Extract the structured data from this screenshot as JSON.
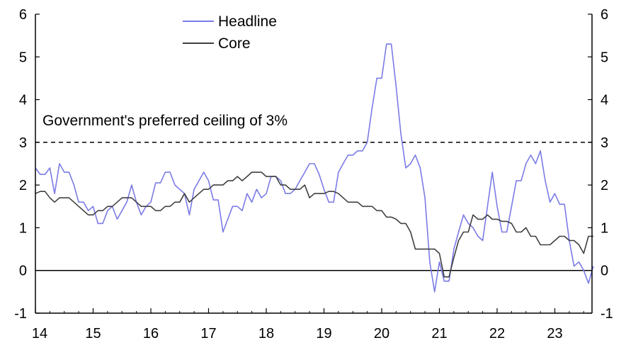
{
  "chart_data": {
    "type": "line",
    "x_labels": [
      "14",
      "15",
      "16",
      "17",
      "18",
      "19",
      "20",
      "21",
      "22",
      "23"
    ],
    "x_range": [
      2014.0,
      2023.833
    ],
    "ylim": [
      -1,
      6
    ],
    "yticks": [
      -1,
      0,
      1,
      2,
      3,
      4,
      5,
      6
    ],
    "grid": false,
    "legend_position": "top-center",
    "annotation": "Government's preferred ceiling of 3%",
    "reference_line": 3,
    "zero_line": 0,
    "series": [
      {
        "name": "Headline",
        "color": "#7b7be6",
        "x": [
          2014.0,
          2014.083,
          2014.167,
          2014.25,
          2014.333,
          2014.417,
          2014.5,
          2014.583,
          2014.667,
          2014.75,
          2014.833,
          2014.917,
          2015.0,
          2015.083,
          2015.167,
          2015.25,
          2015.333,
          2015.417,
          2015.5,
          2015.583,
          2015.667,
          2015.75,
          2015.833,
          2015.917,
          2016.0,
          2016.083,
          2016.167,
          2016.25,
          2016.333,
          2016.417,
          2016.5,
          2016.583,
          2016.667,
          2016.75,
          2016.833,
          2016.917,
          2017.0,
          2017.083,
          2017.167,
          2017.25,
          2017.333,
          2017.417,
          2017.5,
          2017.583,
          2017.667,
          2017.75,
          2017.833,
          2017.917,
          2018.0,
          2018.083,
          2018.167,
          2018.25,
          2018.333,
          2018.417,
          2018.5,
          2018.583,
          2018.667,
          2018.75,
          2018.833,
          2018.917,
          2019.0,
          2019.083,
          2019.167,
          2019.25,
          2019.333,
          2019.417,
          2019.5,
          2019.583,
          2019.667,
          2019.75,
          2019.833,
          2019.917,
          2020.0,
          2020.083,
          2020.167,
          2020.25,
          2020.333,
          2020.417,
          2020.5,
          2020.583,
          2020.667,
          2020.75,
          2020.833,
          2020.917,
          2021.0,
          2021.083,
          2021.167,
          2021.25,
          2021.333,
          2021.417,
          2021.5,
          2021.583,
          2021.667,
          2021.75,
          2021.833,
          2021.917,
          2022.0,
          2022.083,
          2022.167,
          2022.25,
          2022.333,
          2022.417,
          2022.5,
          2022.583,
          2022.667,
          2022.75,
          2022.833,
          2022.917,
          2023.0,
          2023.083,
          2023.167,
          2023.25,
          2023.333,
          2023.417,
          2023.5,
          2023.583,
          2023.667
        ],
        "values": [
          2.4,
          2.25,
          2.25,
          2.4,
          1.8,
          2.5,
          2.3,
          2.3,
          2.0,
          1.6,
          1.6,
          1.4,
          1.5,
          1.1,
          1.1,
          1.4,
          1.5,
          1.2,
          1.4,
          1.6,
          2.0,
          1.6,
          1.3,
          1.5,
          1.6,
          2.05,
          2.05,
          2.3,
          2.3,
          2.0,
          1.9,
          1.8,
          1.3,
          1.9,
          2.1,
          2.3,
          2.1,
          1.65,
          1.65,
          0.9,
          1.2,
          1.5,
          1.5,
          1.4,
          1.8,
          1.6,
          1.9,
          1.7,
          1.8,
          2.2,
          2.2,
          2.1,
          1.8,
          1.8,
          1.9,
          2.1,
          2.3,
          2.5,
          2.5,
          2.25,
          1.9,
          1.6,
          1.6,
          2.3,
          2.5,
          2.7,
          2.7,
          2.8,
          2.8,
          3.0,
          3.8,
          4.5,
          4.5,
          5.3,
          5.3,
          4.3,
          3.2,
          2.4,
          2.5,
          2.7,
          2.4,
          1.7,
          0.2,
          -0.5,
          0.2,
          -0.25,
          -0.25,
          0.5,
          0.9,
          1.3,
          1.1,
          1.0,
          0.8,
          0.7,
          1.5,
          2.3,
          1.5,
          0.9,
          0.9,
          1.5,
          2.1,
          2.1,
          2.5,
          2.7,
          2.5,
          2.8,
          2.1,
          1.6,
          1.8,
          1.55,
          1.55,
          0.7,
          0.1,
          0.2,
          0.0,
          -0.3,
          0.1
        ]
      },
      {
        "name": "Core",
        "color": "#404040",
        "x": [
          2014.0,
          2014.083,
          2014.167,
          2014.25,
          2014.333,
          2014.417,
          2014.5,
          2014.583,
          2014.667,
          2014.75,
          2014.833,
          2014.917,
          2015.0,
          2015.083,
          2015.167,
          2015.25,
          2015.333,
          2015.417,
          2015.5,
          2015.583,
          2015.667,
          2015.75,
          2015.833,
          2015.917,
          2016.0,
          2016.083,
          2016.167,
          2016.25,
          2016.333,
          2016.417,
          2016.5,
          2016.583,
          2016.667,
          2016.75,
          2016.833,
          2016.917,
          2017.0,
          2017.083,
          2017.167,
          2017.25,
          2017.333,
          2017.417,
          2017.5,
          2017.583,
          2017.667,
          2017.75,
          2017.833,
          2017.917,
          2018.0,
          2018.083,
          2018.167,
          2018.25,
          2018.333,
          2018.417,
          2018.5,
          2018.583,
          2018.667,
          2018.75,
          2018.833,
          2018.917,
          2019.0,
          2019.083,
          2019.167,
          2019.25,
          2019.333,
          2019.417,
          2019.5,
          2019.583,
          2019.667,
          2019.75,
          2019.833,
          2019.917,
          2020.0,
          2020.083,
          2020.167,
          2020.25,
          2020.333,
          2020.417,
          2020.5,
          2020.583,
          2020.667,
          2020.75,
          2020.833,
          2020.917,
          2021.0,
          2021.083,
          2021.167,
          2021.25,
          2021.333,
          2021.417,
          2021.5,
          2021.583,
          2021.667,
          2021.75,
          2021.833,
          2021.917,
          2022.0,
          2022.083,
          2022.167,
          2022.25,
          2022.333,
          2022.417,
          2022.5,
          2022.583,
          2022.667,
          2022.75,
          2022.833,
          2022.917,
          2023.0,
          2023.083,
          2023.167,
          2023.25,
          2023.333,
          2023.417,
          2023.5,
          2023.583,
          2023.667
        ],
        "values": [
          1.8,
          1.85,
          1.85,
          1.7,
          1.6,
          1.7,
          1.7,
          1.7,
          1.6,
          1.5,
          1.4,
          1.3,
          1.3,
          1.4,
          1.4,
          1.5,
          1.5,
          1.6,
          1.7,
          1.7,
          1.7,
          1.6,
          1.5,
          1.5,
          1.5,
          1.4,
          1.4,
          1.5,
          1.5,
          1.6,
          1.6,
          1.8,
          1.6,
          1.7,
          1.8,
          1.9,
          1.9,
          2.0,
          2.0,
          2.0,
          2.1,
          2.1,
          2.2,
          2.1,
          2.2,
          2.3,
          2.3,
          2.3,
          2.2,
          2.2,
          2.2,
          2.0,
          2.0,
          1.9,
          1.9,
          1.9,
          2.0,
          1.7,
          1.8,
          1.8,
          1.8,
          1.85,
          1.85,
          1.8,
          1.7,
          1.6,
          1.6,
          1.6,
          1.5,
          1.5,
          1.5,
          1.4,
          1.4,
          1.25,
          1.25,
          1.2,
          1.1,
          1.1,
          0.9,
          0.5,
          0.5,
          0.5,
          0.5,
          0.5,
          0.4,
          -0.15,
          -0.15,
          0.3,
          0.7,
          0.9,
          0.9,
          1.3,
          1.2,
          1.2,
          1.3,
          1.2,
          1.2,
          1.15,
          1.15,
          1.1,
          0.9,
          0.9,
          1.0,
          0.8,
          0.8,
          0.6,
          0.6,
          0.6,
          0.7,
          0.8,
          0.8,
          0.7,
          0.7,
          0.6,
          0.4,
          0.8,
          0.8
        ]
      }
    ]
  }
}
